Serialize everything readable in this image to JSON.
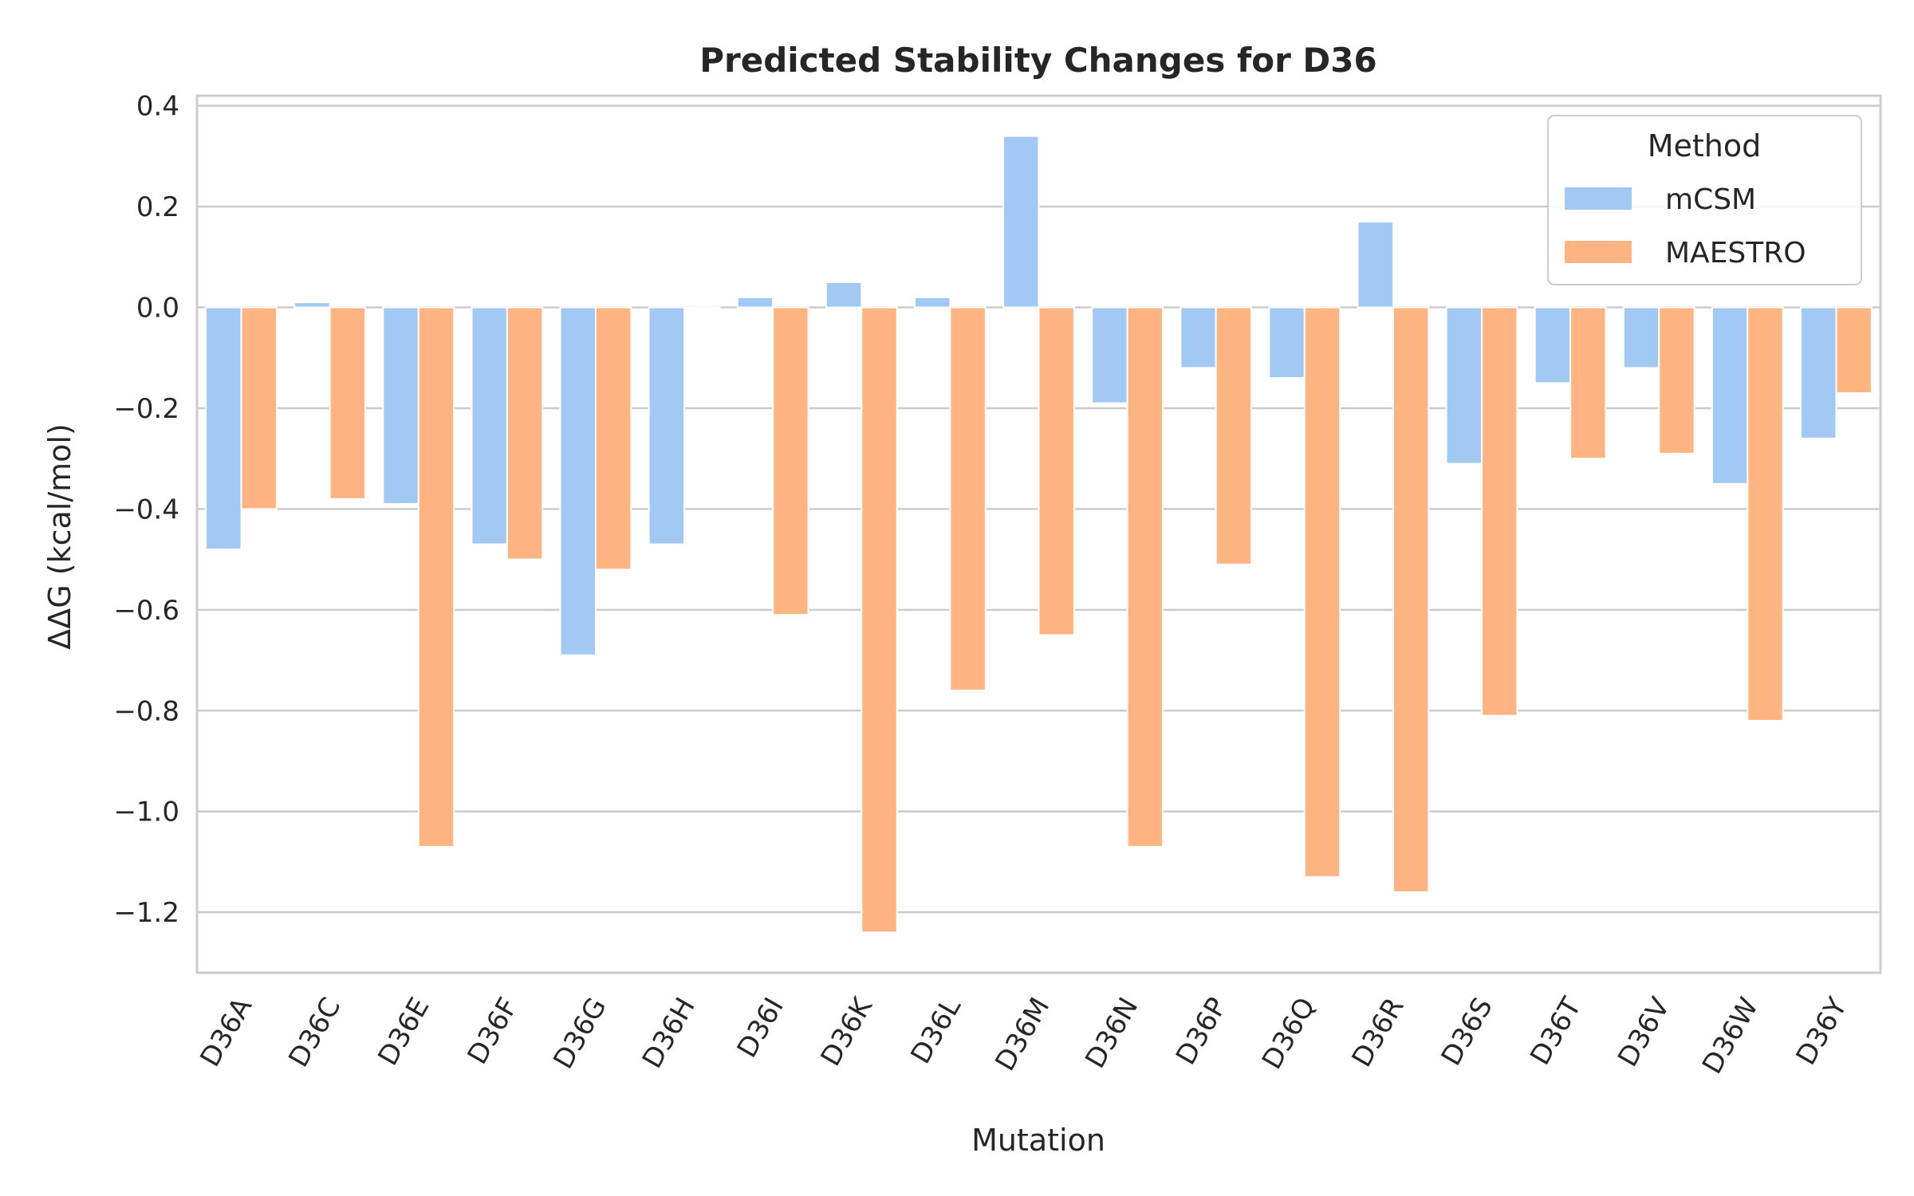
{
  "chart_data": {
    "type": "bar",
    "title": "Predicted Stability Changes for D36",
    "xlabel": "Mutation",
    "ylabel": "ΔΔG (kcal/mol)",
    "ylim": [
      -1.32,
      0.42
    ],
    "yticks": [
      0.4,
      0.2,
      0.0,
      -0.2,
      -0.4,
      -0.6,
      -0.8,
      -1.0,
      -1.2
    ],
    "ytick_labels": [
      "0.4",
      "0.2",
      "0.0",
      "−0.2",
      "−0.4",
      "−0.6",
      "−0.8",
      "−1.0",
      "−1.2"
    ],
    "grid": true,
    "legend": {
      "title": "Method",
      "position": "top-right"
    },
    "categories": [
      "D36A",
      "D36C",
      "D36E",
      "D36F",
      "D36G",
      "D36H",
      "D36I",
      "D36K",
      "D36L",
      "D36M",
      "D36N",
      "D36P",
      "D36Q",
      "D36R",
      "D36S",
      "D36T",
      "D36V",
      "D36W",
      "D36Y"
    ],
    "series": [
      {
        "name": "mCSM",
        "color": "#a1c9f4",
        "values": [
          -0.48,
          0.01,
          -0.39,
          -0.47,
          -0.69,
          -0.47,
          0.02,
          0.05,
          0.02,
          0.34,
          -0.19,
          -0.12,
          -0.14,
          0.17,
          -0.31,
          -0.15,
          -0.12,
          -0.35,
          -0.26
        ]
      },
      {
        "name": "MAESTRO",
        "color": "#ffb482",
        "values": [
          -0.4,
          -0.38,
          -1.07,
          -0.5,
          -0.52,
          0.0,
          -0.61,
          -1.24,
          -0.76,
          -0.65,
          -1.07,
          -0.51,
          -1.13,
          -1.16,
          -0.81,
          -0.3,
          -0.29,
          -0.82,
          -0.17
        ]
      }
    ]
  }
}
